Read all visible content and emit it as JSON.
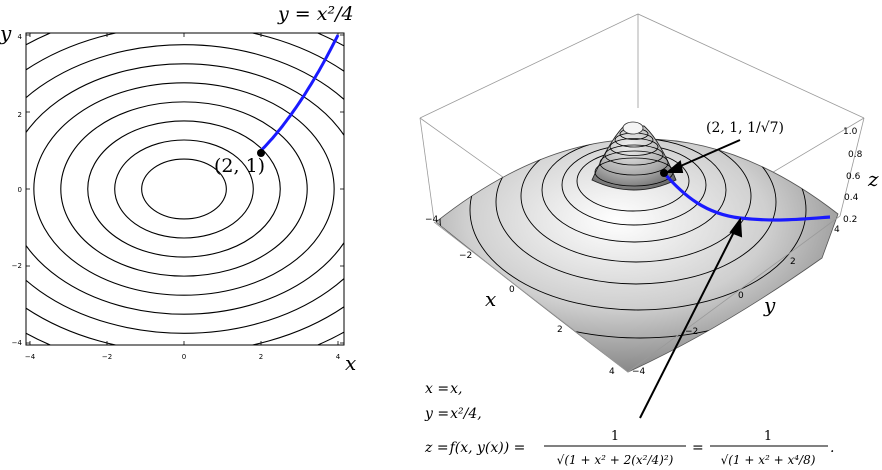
{
  "left_panel": {
    "curve_label": "y = x²/4",
    "point_label": "(2, 1)",
    "x_axis_label": "x",
    "y_axis_label": "y",
    "x_ticks": [
      "−4",
      "−2",
      "0",
      "2",
      "4"
    ],
    "y_ticks": [
      "4",
      "2",
      "0",
      "−2",
      "−4"
    ],
    "colors": {
      "curve": "#1a1aff",
      "contours": "#000000"
    }
  },
  "right_panel": {
    "point_label": "(2, 1, 1/√7)",
    "x_axis_label": "x",
    "y_axis_label": "y",
    "z_axis_label": "z",
    "x_ticks": [
      "−4",
      "−2",
      "0",
      "2",
      "4"
    ],
    "y_ticks": [
      "−4",
      "−2",
      "0",
      "2",
      "4"
    ],
    "z_ticks": [
      "1.0",
      "0.8",
      "0.6",
      "0.4",
      "0.2"
    ]
  },
  "equations": {
    "line1_lhs": "x =",
    "line1_rhs": "x,",
    "line2_lhs": "y =",
    "line2_rhs": "x²/4,",
    "line3_lhs": "z =",
    "line3_mid": "f(x, y(x)) =",
    "frac1_num": "1",
    "frac1_den": "√(1 + x² + 2(x²/4)²)",
    "eq_sign": "=",
    "frac2_num": "1",
    "frac2_den": "√(1 + x² + x⁴/8)",
    "end": "."
  }
}
